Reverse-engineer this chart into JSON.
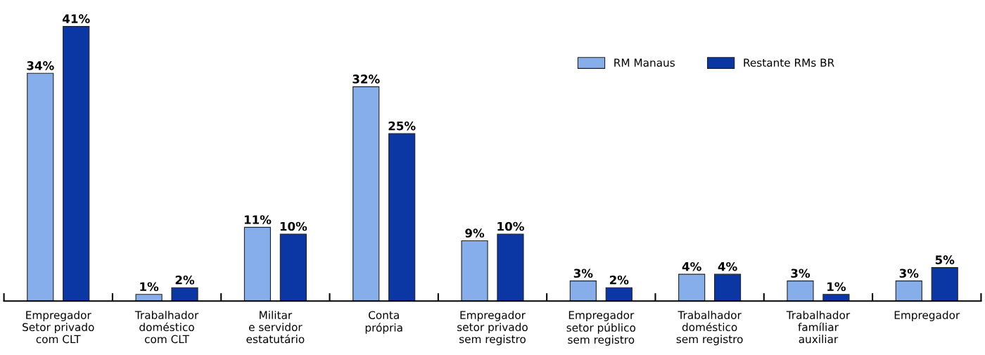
{
  "chart_data": {
    "type": "bar",
    "categories": [
      "Empregador\nSetor privado\ncom CLT",
      "Trabalhador\ndoméstico\ncom CLT",
      "Militar\ne servidor\nestatutário",
      "Conta\nprópria",
      "Empregador\nsetor privado\nsem registro",
      "Empregador\nsetor público\nsem registro",
      "Trabalhador\ndoméstico\nsem registro",
      "Trabalhador\nfamíliar\nauxiliar",
      "Empregador"
    ],
    "series": [
      {
        "name": "RM Manaus",
        "color": "#86aeea",
        "values": [
          34,
          1,
          11,
          32,
          9,
          3,
          4,
          3,
          3
        ],
        "value_labels": [
          "34%",
          "1%",
          "11%",
          "32%",
          "9%",
          "3%",
          "4%",
          "3%",
          "3%"
        ]
      },
      {
        "name": "Restante RMs BR",
        "color": "#0a37a3",
        "values": [
          41,
          2,
          10,
          25,
          10,
          2,
          4,
          1,
          5
        ],
        "value_labels": [
          "41%",
          "2%",
          "10%",
          "25%",
          "10%",
          "2%",
          "4%",
          "1%",
          "5%"
        ]
      }
    ],
    "legend": "top right",
    "grid": false
  }
}
